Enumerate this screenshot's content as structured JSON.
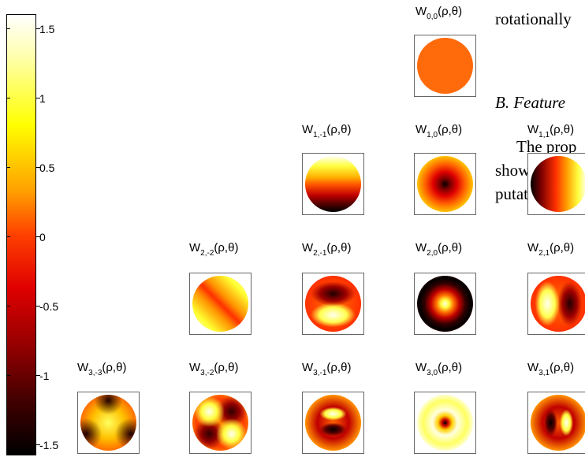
{
  "colorbar": {
    "tick_labels": [
      "1.5",
      "1",
      "0.5",
      "0",
      "-0.5",
      "-1",
      "-1.5"
    ],
    "range": [
      -1.6,
      1.6
    ],
    "colormap": "hot",
    "colors": [
      "#000000",
      "#900000",
      "#e00000",
      "#ff4000",
      "#ffa000",
      "#ffff00",
      "#ffffff"
    ]
  },
  "polynomials": [
    {
      "sub": "0,0",
      "label": "(ρ,θ)"
    },
    {
      "sub": "1,-1",
      "label": "(ρ,θ)"
    },
    {
      "sub": "1,0",
      "label": "(ρ,θ)"
    },
    {
      "sub": "1,1",
      "label": "(ρ,θ)"
    },
    {
      "sub": "2,-2",
      "label": "(ρ,θ)"
    },
    {
      "sub": "2,-1",
      "label": "(ρ,θ)"
    },
    {
      "sub": "2,0",
      "label": "(ρ,θ)"
    },
    {
      "sub": "2,1",
      "label": "(ρ,θ)"
    },
    {
      "sub": "3,-3",
      "label": "(ρ,θ)"
    },
    {
      "sub": "3,-2",
      "label": "(ρ,θ)"
    },
    {
      "sub": "3,-1",
      "label": "(ρ,θ)"
    },
    {
      "sub": "3,0",
      "label": "(ρ,θ)"
    },
    {
      "sub": "3,1",
      "label": "(ρ,θ)"
    }
  ],
  "paper_text": {
    "line1": "rotationally",
    "heading": "B.  Feature",
    "line2": "The prop",
    "line3": "shown in F",
    "line4": "putational"
  }
}
